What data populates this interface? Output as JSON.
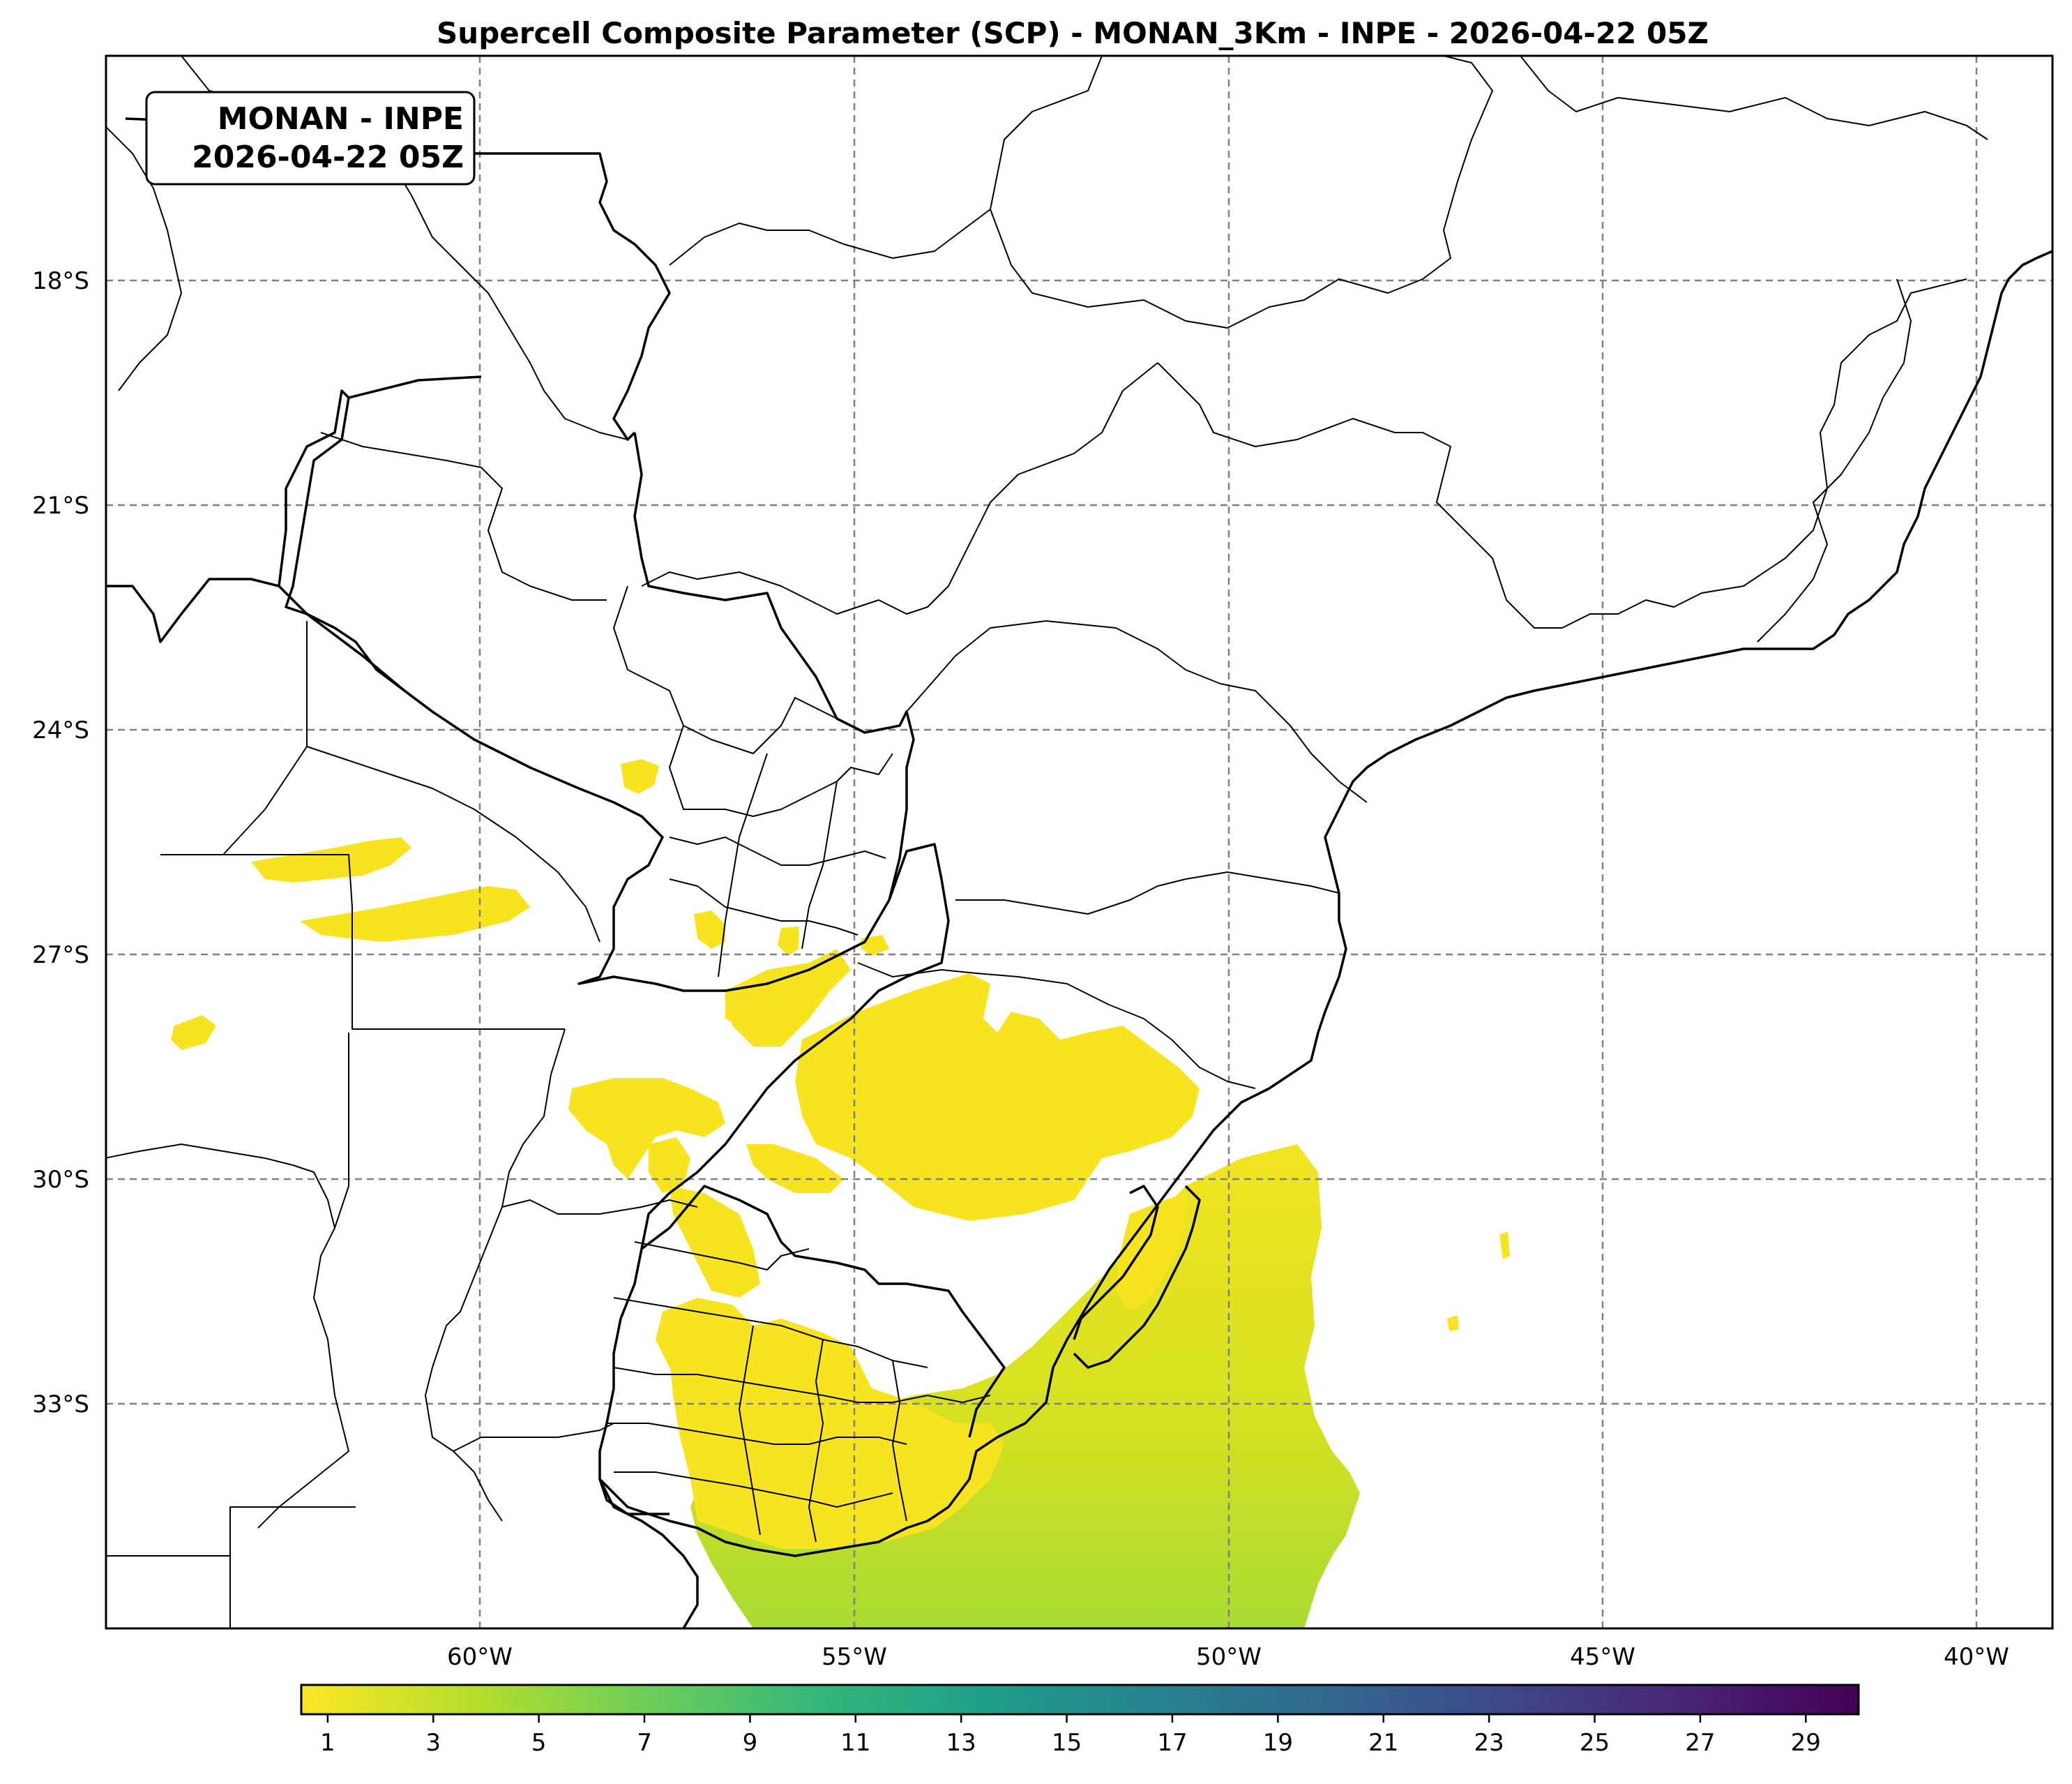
{
  "title": "Supercell Composite Parameter (SCP) - MONAN_3Km - INPE - 2026-04-22 05Z",
  "info_box": {
    "line1": "MONAN - INPE",
    "line2": "2026-04-22 05Z"
  },
  "map": {
    "lon_range": [
      -65,
      -39
    ],
    "lat_range": [
      -36,
      -15
    ],
    "lon_ticks": [
      {
        "value": -60,
        "label": "60°W"
      },
      {
        "value": -55,
        "label": "55°W"
      },
      {
        "value": -50,
        "label": "50°W"
      },
      {
        "value": -45,
        "label": "45°W"
      },
      {
        "value": -40,
        "label": "40°W"
      }
    ],
    "lat_ticks": [
      {
        "value": -18,
        "label": "18°S"
      },
      {
        "value": -21,
        "label": "21°S"
      },
      {
        "value": -24,
        "label": "24°S"
      },
      {
        "value": -27,
        "label": "27°S"
      },
      {
        "value": -30,
        "label": "30°S"
      },
      {
        "value": -33,
        "label": "33°S"
      }
    ],
    "gridlines": "dashed",
    "colormap": "viridis_r",
    "boundaries": "countries and states (black lines)",
    "field_regions": [
      {
        "name": "southern Brazil (Rio Grande do Sul)",
        "level": "1-2"
      },
      {
        "name": "Uruguay",
        "level": "1-2"
      },
      {
        "name": "South Atlantic off Uruguay and southern Brazil",
        "level": "1-5"
      },
      {
        "name": "Corrientes / Misiones (Argentina)",
        "level": "1"
      },
      {
        "name": "Chaco / Formosa (Argentina)",
        "level": "1"
      },
      {
        "name": "Paraguay (small patches)",
        "level": "1"
      }
    ]
  },
  "colorbar": {
    "min": 0.5,
    "max": 30,
    "ticks": [
      "1",
      "3",
      "5",
      "7",
      "9",
      "11",
      "13",
      "15",
      "17",
      "19",
      "21",
      "23",
      "25",
      "27",
      "29"
    ],
    "colors": [
      "#fde725",
      "#b5de2b",
      "#6ece58",
      "#35b779",
      "#1f9e89",
      "#26828e",
      "#31688e",
      "#3e4989",
      "#482878",
      "#440154"
    ]
  }
}
